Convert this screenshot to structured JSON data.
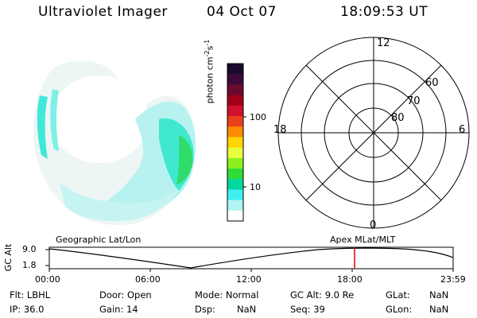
{
  "header": {
    "instrument": "Ultraviolet Imager",
    "date": "04 Oct 07",
    "time": "18:09:53 UT"
  },
  "colorbar": {
    "label_main": "photon cm",
    "label_sup1": "-2",
    "label_mid": "s",
    "label_sup2": "-1",
    "ticks": [
      "100",
      "10"
    ],
    "colors": [
      "#1a0a2e",
      "#3b0a3a",
      "#6a0a2e",
      "#a00018",
      "#d1102a",
      "#e8401a",
      "#ff8c00",
      "#ffd400",
      "#e8ff3c",
      "#8cf020",
      "#2fdc38",
      "#00d8a0",
      "#40f0f0",
      "#b0f4f4",
      "#ffffff"
    ]
  },
  "polar_grid": {
    "mlt_labels": {
      "top": "12",
      "right": "6",
      "bottom": "0",
      "left": "18"
    },
    "lat_labels": [
      "60",
      "70",
      "80"
    ]
  },
  "timeline": {
    "y_axis_label": "GC Alt",
    "y_ticks": [
      "9.0",
      "1.8"
    ],
    "left_title": "Geographic Lat/Lon",
    "right_title": "Apex  MLat/MLT",
    "x_ticks": [
      "00:00",
      "06:00",
      "12:00",
      "18:00",
      "23:59"
    ],
    "marker_color": "#e00000"
  },
  "info": {
    "row1": {
      "flt": "Flt: LBHL",
      "door": "Door: Open",
      "mode": "Mode: Normal",
      "gcalt": "GC Alt: 9.0 Re",
      "glat_label": "GLat:",
      "glat_value": "NaN"
    },
    "row2": {
      "ip": "IP: 36.0",
      "gain": "Gain: 14",
      "dsp_label": "Dsp:",
      "dsp_value": "NaN",
      "seq": "Seq: 39",
      "glon_label": "GLon:",
      "glon_value": "NaN"
    }
  }
}
